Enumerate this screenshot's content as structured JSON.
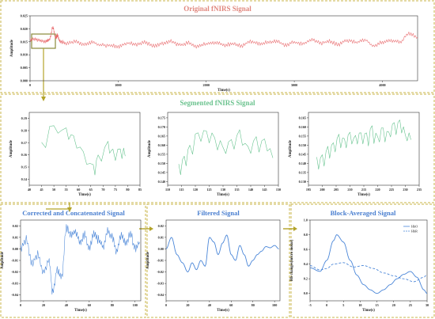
{
  "colors": {
    "raw_signal": "#e8686b",
    "segment_signal": "#5cbf87",
    "blue_signal": "#4a86d8",
    "bottom_title": "#4a7fd0",
    "top_title": "#e0877e",
    "mid_title": "#6cc38f",
    "dash_border": "#c9b64a",
    "arrow": "#b3a329",
    "hbo_line": "#4a86d8",
    "hbr_line": "#4a86d8"
  },
  "chart_data": [
    {
      "id": "original",
      "type": "line",
      "title": "Original fNIRS Signal",
      "xlabel": "Time(s)",
      "ylabel": "Amplitude",
      "xlim": [
        0,
        4400
      ],
      "ylim": [
        0,
        0.025
      ],
      "xticks": [
        0,
        1000,
        2000,
        3000,
        4000
      ],
      "yticks": [
        0.0,
        0.005,
        0.01,
        0.015,
        0.02,
        0.025
      ],
      "ytick_labels": [
        "0.000",
        "0.005",
        "0.010",
        "0.015",
        "0.020",
        "0.025"
      ],
      "x": [
        0,
        60,
        120,
        180,
        220,
        260,
        290,
        310,
        340,
        400,
        500,
        600,
        700,
        800,
        900,
        1000,
        1100,
        1200,
        1300,
        1400,
        1500,
        1600,
        1700,
        1800,
        1900,
        2000,
        2100,
        2200,
        2300,
        2400,
        2500,
        2600,
        2700,
        2800,
        2900,
        3000,
        3100,
        3200,
        3300,
        3400,
        3500,
        3600,
        3700,
        3800,
        3900,
        4000,
        4100,
        4200,
        4300,
        4400
      ],
      "y": [
        0.0158,
        0.016,
        0.0155,
        0.0152,
        0.0158,
        0.0205,
        0.0165,
        0.0175,
        0.0152,
        0.0145,
        0.015,
        0.0142,
        0.0148,
        0.0138,
        0.0135,
        0.0132,
        0.0145,
        0.014,
        0.0148,
        0.0135,
        0.0142,
        0.0152,
        0.0138,
        0.0145,
        0.0132,
        0.0142,
        0.0148,
        0.0138,
        0.0142,
        0.0135,
        0.0152,
        0.0142,
        0.0148,
        0.0152,
        0.0138,
        0.0148,
        0.0142,
        0.0158,
        0.0145,
        0.0152,
        0.014,
        0.0155,
        0.0148,
        0.0158,
        0.0135,
        0.0148,
        0.0155,
        0.015,
        0.018,
        0.0168
      ]
    },
    {
      "id": "seg1",
      "type": "line",
      "title": "Segmented fNIRS Signal",
      "xlabel": "Time(s)",
      "ylabel": "Amplitude",
      "xlim": [
        40,
        85
      ],
      "ylim": [
        0.135,
        0.195
      ],
      "xticks": [
        40,
        45,
        50,
        55,
        60,
        65,
        70,
        75,
        80,
        85
      ],
      "yticks": [
        0.14,
        0.15,
        0.16,
        0.17,
        0.18,
        0.19
      ],
      "x": [
        45,
        50,
        55,
        58,
        62,
        66,
        68,
        72,
        74,
        77,
        79
      ],
      "y": [
        0.168,
        0.182,
        0.177,
        0.171,
        0.16,
        0.147,
        0.155,
        0.167,
        0.16,
        0.161,
        0.159
      ]
    },
    {
      "id": "seg2",
      "type": "line",
      "xlabel": "Time(s)",
      "ylabel": "Amplitude",
      "xlim": [
        110,
        150
      ],
      "ylim": [
        0.138,
        0.178
      ],
      "xticks": [
        110,
        115,
        120,
        125,
        130,
        135,
        140,
        145,
        150
      ],
      "yticks": [
        0.14,
        0.145,
        0.15,
        0.155,
        0.16,
        0.165,
        0.17,
        0.175
      ],
      "ytick_labels": [
        "0.140",
        "0.145",
        "0.150",
        "0.155",
        "0.160",
        "0.165",
        "0.170",
        "0.175"
      ],
      "x": [
        114,
        116,
        118,
        121,
        124,
        127,
        130,
        133,
        136,
        139,
        142,
        145,
        148
      ],
      "y": [
        0.147,
        0.15,
        0.158,
        0.165,
        0.163,
        0.162,
        0.157,
        0.161,
        0.164,
        0.156,
        0.161,
        0.16,
        0.153
      ]
    },
    {
      "id": "seg3",
      "type": "line",
      "xlabel": "Time(s)",
      "ylabel": "Amplitude",
      "xlim": [
        195,
        235
      ],
      "ylim": [
        0.128,
        0.168
      ],
      "xticks": [
        195,
        200,
        205,
        210,
        215,
        220,
        225,
        230,
        235
      ],
      "yticks": [
        0.13,
        0.135,
        0.14,
        0.145,
        0.15,
        0.155,
        0.16,
        0.165
      ],
      "ytick_labels": [
        "0.130",
        "0.135",
        "0.140",
        "0.145",
        "0.150",
        "0.155",
        "0.160",
        "0.165"
      ],
      "x": [
        198,
        200,
        202,
        204,
        206,
        208,
        210,
        212,
        214,
        216,
        218,
        220,
        222,
        224,
        226,
        228,
        230,
        232
      ],
      "y": [
        0.14,
        0.142,
        0.146,
        0.148,
        0.152,
        0.15,
        0.154,
        0.151,
        0.155,
        0.153,
        0.156,
        0.152,
        0.157,
        0.155,
        0.159,
        0.16,
        0.154,
        0.153
      ]
    },
    {
      "id": "corrected",
      "type": "line",
      "title": "Corrected and Concatenated Signal",
      "xlabel": "Time(s)",
      "ylabel": "Amplitude",
      "xlim": [
        0,
        105
      ],
      "ylim": [
        -0.045,
        0.025
      ],
      "xticks": [
        0,
        20,
        40,
        60,
        80,
        100
      ],
      "yticks": [
        -0.04,
        -0.03,
        -0.02,
        -0.01,
        0.0,
        0.01,
        0.02
      ],
      "ytick_labels": [
        "-0.04",
        "-0.03",
        "-0.02",
        "-0.01",
        "0.00",
        "0.01",
        "0.02"
      ],
      "x": [
        0,
        5,
        10,
        15,
        20,
        25,
        28,
        32,
        36,
        40,
        44,
        48,
        52,
        56,
        60,
        64,
        68,
        72,
        76,
        80,
        84,
        88,
        92,
        96,
        100,
        104
      ],
      "y": [
        0.0,
        0.008,
        -0.012,
        -0.005,
        -0.02,
        -0.01,
        -0.038,
        -0.018,
        -0.025,
        0.018,
        0.012,
        0.015,
        0.005,
        0.012,
        0.0,
        0.014,
        0.008,
        0.002,
        0.015,
        0.01,
        -0.002,
        0.012,
        0.004,
        0.013,
        0.0,
        0.006
      ]
    },
    {
      "id": "filtered",
      "type": "line",
      "title": "Filtered Signal",
      "xlabel": "Time(s)",
      "ylabel": "Amplitude",
      "xlim": [
        0,
        105
      ],
      "ylim": [
        -0.045,
        0.025
      ],
      "xticks": [
        0,
        20,
        40,
        60,
        80,
        100
      ],
      "yticks": [
        -0.04,
        -0.03,
        -0.02,
        -0.01,
        0.0,
        0.01,
        0.02
      ],
      "ytick_labels": [
        "-0.04",
        "-0.03",
        "-0.02",
        "-0.01",
        "0.00",
        "0.01",
        "0.02"
      ],
      "x": [
        0,
        5,
        10,
        15,
        20,
        24,
        28,
        32,
        36,
        40,
        44,
        48,
        52,
        56,
        60,
        64,
        68,
        72,
        76,
        80,
        84,
        88,
        92,
        96,
        100,
        104
      ],
      "y": [
        0.0,
        0.01,
        -0.005,
        -0.012,
        -0.02,
        -0.012,
        -0.018,
        -0.01,
        -0.015,
        0.01,
        0.006,
        -0.005,
        0.005,
        0.012,
        -0.005,
        -0.01,
        0.003,
        -0.005,
        -0.015,
        -0.01,
        -0.005,
        -0.002,
        0.002,
        0.001,
        0.003,
        0.0
      ]
    },
    {
      "id": "block",
      "type": "line",
      "title": "Block-Averaged Signal",
      "xlabel": "Time(s)",
      "ylabel": "Hb changes(micro molar)",
      "xlim": [
        -5,
        30
      ],
      "ylim": [
        -0.1,
        1.0
      ],
      "xticks": [
        -5,
        0,
        5,
        10,
        15,
        20,
        25,
        30
      ],
      "yticks": [
        0.0,
        0.2,
        0.4,
        0.6,
        0.8,
        1.0
      ],
      "ytick_labels": [
        "0.0",
        "0.2",
        "0.4",
        "0.6",
        "0.8",
        "1.0"
      ],
      "legend_position": "top-right",
      "series": [
        {
          "name": "HbO",
          "x": [
            -5,
            -2,
            0,
            2,
            3,
            5,
            7,
            9,
            11,
            13,
            15,
            17,
            19,
            21,
            23,
            25,
            27,
            29,
            30
          ],
          "y": [
            0.35,
            0.3,
            0.45,
            0.72,
            0.8,
            0.7,
            0.45,
            0.25,
            0.12,
            0.05,
            0.0,
            0.05,
            0.12,
            0.2,
            0.26,
            0.3,
            0.22,
            0.05,
            0.0
          ]
        },
        {
          "name": "HbR",
          "x": [
            -5,
            -2,
            0,
            2,
            5,
            8,
            11,
            14,
            17,
            20,
            23,
            26,
            29,
            30
          ],
          "y": [
            0.38,
            0.32,
            0.34,
            0.4,
            0.42,
            0.36,
            0.38,
            0.34,
            0.28,
            0.24,
            0.2,
            0.16,
            0.22,
            0.26
          ]
        }
      ]
    }
  ]
}
